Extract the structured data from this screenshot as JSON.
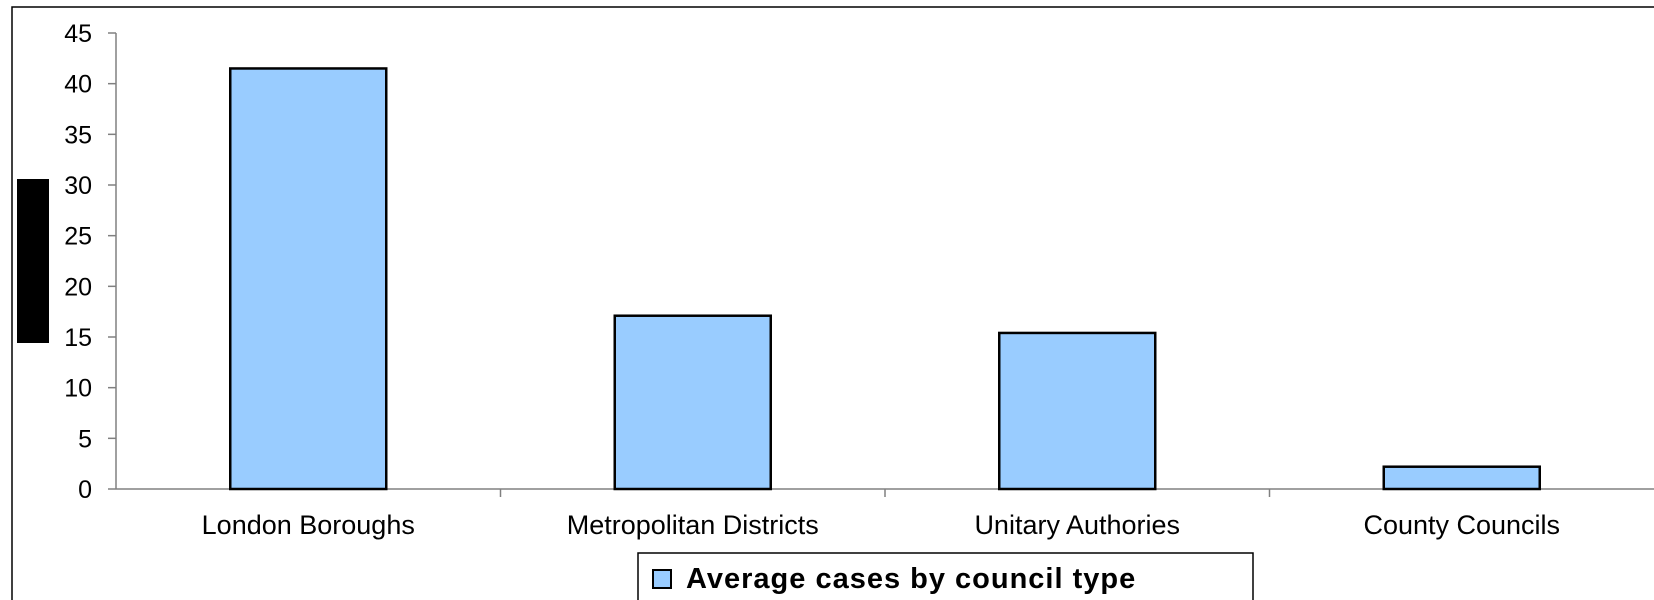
{
  "chart_data": {
    "type": "bar",
    "categories": [
      "London Boroughs",
      "Metropolitan Districts",
      "Unitary Authories",
      "County Councils"
    ],
    "series": [
      {
        "name": "Average cases by council type",
        "values": [
          41.5,
          17.1,
          15.4,
          2.2
        ]
      }
    ],
    "ylim": [
      0,
      45
    ],
    "yticks": [
      0,
      5,
      10,
      15,
      20,
      25,
      30,
      35,
      40,
      45
    ],
    "title": "",
    "xlabel": "",
    "ylabel": "",
    "grid": false,
    "legend_position": "bottom",
    "colors": {
      "bar_fill": "#99ccff",
      "bar_stroke": "#000000",
      "redaction": "#000000"
    }
  }
}
